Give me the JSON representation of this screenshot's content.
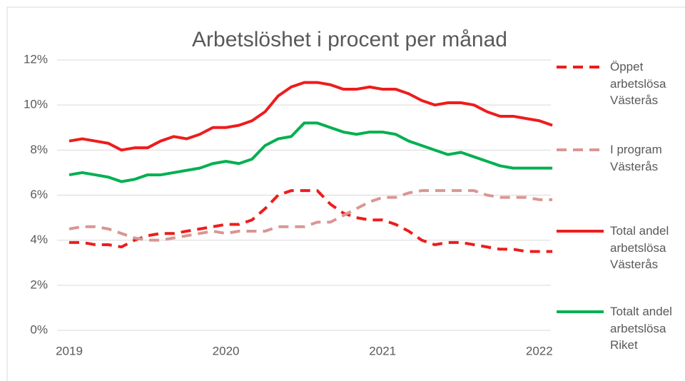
{
  "chart_data": {
    "type": "line",
    "title": "Arbetslöshet i procent per månad",
    "categories": [
      "2019",
      null,
      null,
      null,
      null,
      null,
      null,
      null,
      null,
      null,
      null,
      null,
      "2020",
      null,
      null,
      null,
      null,
      null,
      null,
      null,
      null,
      null,
      null,
      null,
      "2021",
      null,
      null,
      null,
      null,
      null,
      null,
      null,
      null,
      null,
      null,
      null,
      "2022",
      null
    ],
    "series": [
      {
        "name": "Öppet arbetslösa Västerås",
        "color": "#ee1c1c",
        "dashed": true,
        "values": [
          3.9,
          3.9,
          3.8,
          3.8,
          3.7,
          4.0,
          4.2,
          4.3,
          4.3,
          4.4,
          4.5,
          4.6,
          4.7,
          4.7,
          4.9,
          5.4,
          6.0,
          6.2,
          6.2,
          6.2,
          5.6,
          5.2,
          5.0,
          4.9,
          4.9,
          4.7,
          4.4,
          4.0,
          3.8,
          3.9,
          3.9,
          3.8,
          3.7,
          3.6,
          3.6,
          3.5,
          3.5,
          3.5
        ]
      },
      {
        "name": "I program Västerås",
        "color": "#d99694",
        "dashed": true,
        "values": [
          4.5,
          4.6,
          4.6,
          4.5,
          4.3,
          4.1,
          4.0,
          4.0,
          4.1,
          4.2,
          4.3,
          4.4,
          4.3,
          4.4,
          4.4,
          4.4,
          4.6,
          4.6,
          4.6,
          4.8,
          4.8,
          5.1,
          5.4,
          5.7,
          5.9,
          5.9,
          6.1,
          6.2,
          6.2,
          6.2,
          6.2,
          6.2,
          6.0,
          5.9,
          5.9,
          5.9,
          5.8,
          5.8
        ]
      },
      {
        "name": "Total andel arbetslösa Västerås",
        "color": "#ee1c1c",
        "dashed": false,
        "values": [
          8.4,
          8.5,
          8.4,
          8.3,
          8.0,
          8.1,
          8.1,
          8.4,
          8.6,
          8.5,
          8.7,
          9.0,
          9.0,
          9.1,
          9.3,
          9.7,
          10.4,
          10.8,
          11.0,
          11.0,
          10.9,
          10.7,
          10.7,
          10.8,
          10.7,
          10.7,
          10.5,
          10.2,
          10.0,
          10.1,
          10.1,
          10.0,
          9.7,
          9.5,
          9.5,
          9.4,
          9.3,
          9.1
        ]
      },
      {
        "name": "Totalt andel arbetslösa Riket",
        "color": "#00b050",
        "dashed": false,
        "values": [
          6.9,
          7.0,
          6.9,
          6.8,
          6.6,
          6.7,
          6.9,
          6.9,
          7.0,
          7.1,
          7.2,
          7.4,
          7.5,
          7.4,
          7.6,
          8.2,
          8.5,
          8.6,
          9.2,
          9.2,
          9.0,
          8.8,
          8.7,
          8.8,
          8.8,
          8.7,
          8.4,
          8.2,
          8.0,
          7.8,
          7.9,
          7.7,
          7.5,
          7.3,
          7.2,
          7.2,
          7.2,
          7.2
        ]
      }
    ],
    "ylim": [
      0,
      12
    ],
    "yticks": [
      {
        "value": 0,
        "label": "0%"
      },
      {
        "value": 2,
        "label": "2%"
      },
      {
        "value": 4,
        "label": "4%"
      },
      {
        "value": 6,
        "label": "6%"
      },
      {
        "value": 8,
        "label": "8%"
      },
      {
        "value": 10,
        "label": "10%"
      },
      {
        "value": 12,
        "label": "12%"
      }
    ],
    "grid": true,
    "legend": "right"
  }
}
